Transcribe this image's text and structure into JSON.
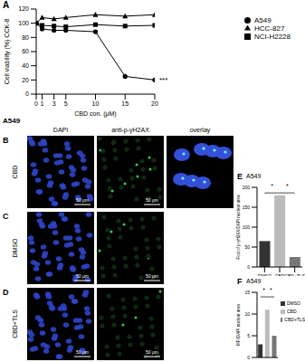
{
  "chart_data": [
    {
      "label": "A",
      "type": "line",
      "x": [
        0,
        1,
        3,
        5,
        10,
        15,
        20
      ],
      "xlim": [
        0,
        20
      ],
      "xticks": [
        0,
        1,
        3,
        5,
        10,
        15,
        20
      ],
      "ylim": [
        0,
        120
      ],
      "yticks": [
        0,
        20,
        40,
        60,
        80,
        100,
        120
      ],
      "x_label": "CBD con. (μM)",
      "y_label": "Cell viability (%) CCK-8",
      "legend": "right",
      "series": [
        {
          "name": "A549",
          "color": "#000000",
          "marker": "circle",
          "values": [
            100,
            92,
            90,
            90,
            88,
            25,
            20
          ]
        },
        {
          "name": "NCI-H2228",
          "color": "#000000",
          "marker": "square",
          "values": [
            100,
            97,
            96,
            95,
            98,
            96,
            97
          ]
        },
        {
          "name": "HCC-827",
          "color": "#000000",
          "marker": "triangle",
          "values": [
            100,
            108,
            106,
            108,
            112,
            110,
            112
          ]
        }
      ],
      "annotations": [
        {
          "text": "***",
          "x": 20,
          "y": 20
        }
      ]
    },
    {
      "label": "E",
      "type": "bar",
      "title": "A549",
      "categories": [
        "DMSO",
        "CBD",
        "CBD+TLS"
      ],
      "values": [
        65,
        180,
        25
      ],
      "colors": [
        "#333333",
        "#bbbbbb",
        "#777777"
      ],
      "ylim": [
        0,
        200
      ],
      "yticks": [
        0,
        50,
        100,
        150,
        200
      ],
      "y_label": "Foci of p-γH2AX/DAPI nuclear area",
      "annotations": [
        {
          "text": "*",
          "between": [
            "DMSO",
            "CBD"
          ]
        },
        {
          "text": "*",
          "between": [
            "CBD",
            "CBD+TLS"
          ]
        }
      ]
    },
    {
      "label": "F",
      "type": "bar",
      "title": "A549",
      "categories": [
        "DMSO",
        "CBD",
        "CBD+TLS"
      ],
      "values": [
        3,
        11,
        5
      ],
      "colors": [
        "#333333",
        "#bbbbbb",
        "#777777"
      ],
      "ylim": [
        0,
        15
      ],
      "yticks": [
        0,
        5,
        10,
        15
      ],
      "y_label": "MFI/DAPI nuclear area",
      "legend": "right",
      "tick_labels": "y",
      "annotations": [
        {
          "text": "*",
          "between": [
            "DMSO",
            "CBD"
          ]
        },
        {
          "text": "*",
          "between": [
            "CBD",
            "CBD+TLS"
          ]
        }
      ]
    }
  ],
  "microscopy": {
    "title": "A549",
    "columns": [
      "DAPI",
      "anti-p-γH2AX",
      "overlay"
    ],
    "rows": [
      {
        "label": "B",
        "condition": "CBD",
        "images": [
          {
            "channel": "DAPI",
            "scale_bar": "50 μm"
          },
          {
            "channel": "anti-p-γH2AX",
            "scale_bar": "50 μm"
          },
          {
            "channel": "overlay"
          }
        ]
      },
      {
        "label": "C",
        "condition": "DMSO",
        "images": [
          {
            "channel": "DAPI",
            "scale_bar": "50 μm"
          },
          {
            "channel": "anti-p-γH2AX",
            "scale_bar": "50 μm"
          }
        ]
      },
      {
        "label": "D",
        "condition": "CBD+TLS",
        "images": [
          {
            "channel": "DAPI",
            "scale_bar": "50 μm"
          },
          {
            "channel": "anti-p-γH2AX",
            "scale_bar": "50 μm"
          }
        ]
      }
    ]
  }
}
